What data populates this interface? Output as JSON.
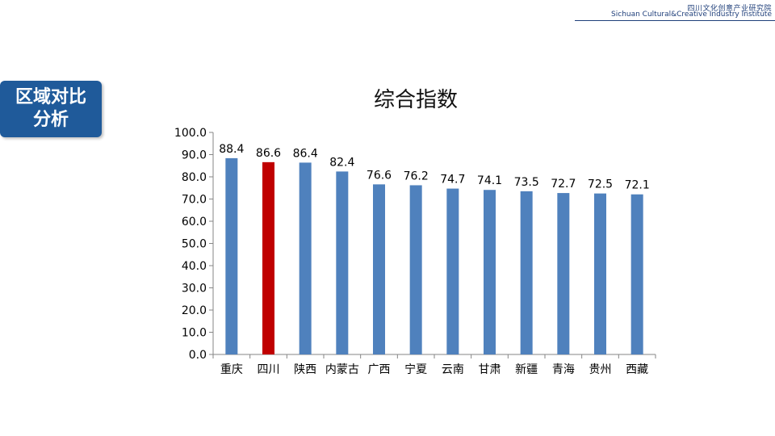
{
  "header": {
    "institute_cn": "四川文化创意产业研究院",
    "institute_en": "Sichuan Cultural&Creative Industry Institute"
  },
  "section_badge": {
    "line1": "区域对比",
    "line2": "分析"
  },
  "colors": {
    "bar": "#4f81bd",
    "bar_highlight": "#c00000",
    "badge": "#1f5a9a",
    "header": "#1f3f7a"
  },
  "chart_data": {
    "type": "bar",
    "title": "综合指数",
    "categories": [
      "重庆",
      "四川",
      "陕西",
      "内蒙古",
      "广西",
      "宁夏",
      "云南",
      "甘肃",
      "新疆",
      "青海",
      "贵州",
      "西藏"
    ],
    "values": [
      88.4,
      86.6,
      86.4,
      82.4,
      76.6,
      76.2,
      74.7,
      74.1,
      73.5,
      72.7,
      72.5,
      72.1
    ],
    "data_labels": [
      "88.4",
      "86.6",
      "86.4",
      "82.4",
      "76.6",
      "76.2",
      "74.7",
      "74.1",
      "73.5",
      "72.7",
      "72.5",
      "72.1"
    ],
    "highlight_category": "四川",
    "ylim": [
      0,
      100
    ],
    "yticks": [
      "0.0",
      "10.0",
      "20.0",
      "30.0",
      "40.0",
      "50.0",
      "60.0",
      "70.0",
      "80.0",
      "90.0",
      "100.0"
    ],
    "grid": false,
    "legend": "none",
    "xlabel": "",
    "ylabel": ""
  }
}
